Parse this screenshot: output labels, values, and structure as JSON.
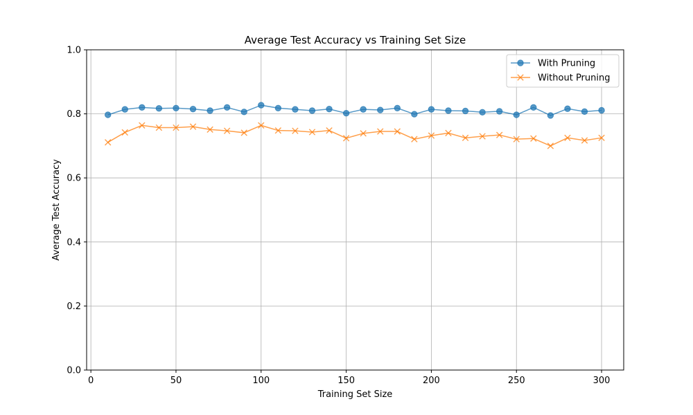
{
  "chart_data": {
    "type": "line",
    "title": "Average Test Accuracy vs Training Set Size",
    "xlabel": "Training Set Size",
    "ylabel": "Average Test Accuracy",
    "xlim": [
      -2.5,
      313
    ],
    "ylim": [
      0,
      1
    ],
    "xticks": [
      0,
      50,
      100,
      150,
      200,
      250,
      300
    ],
    "yticks": [
      0.0,
      0.2,
      0.4,
      0.6,
      0.8,
      1.0
    ],
    "ytick_labels": [
      "0.0",
      "0.2",
      "0.4",
      "0.6",
      "0.8",
      "1.0"
    ],
    "grid": true,
    "legend_position": "top-right",
    "x": [
      10,
      20,
      30,
      40,
      50,
      60,
      70,
      80,
      90,
      100,
      110,
      120,
      130,
      140,
      150,
      160,
      170,
      180,
      190,
      200,
      210,
      220,
      230,
      240,
      250,
      260,
      270,
      280,
      290,
      300
    ],
    "series": [
      {
        "name": "With Pruning",
        "color": "#1f77b4",
        "marker": "circle",
        "values": [
          0.797,
          0.814,
          0.82,
          0.817,
          0.818,
          0.815,
          0.81,
          0.82,
          0.806,
          0.827,
          0.818,
          0.814,
          0.81,
          0.815,
          0.802,
          0.814,
          0.812,
          0.818,
          0.799,
          0.814,
          0.81,
          0.809,
          0.805,
          0.808,
          0.797,
          0.82,
          0.795,
          0.816,
          0.807,
          0.811
        ]
      },
      {
        "name": "Without Pruning",
        "color": "#ff7f0e",
        "marker": "x",
        "values": [
          0.711,
          0.742,
          0.764,
          0.757,
          0.757,
          0.76,
          0.751,
          0.747,
          0.741,
          0.764,
          0.748,
          0.747,
          0.743,
          0.748,
          0.724,
          0.739,
          0.745,
          0.745,
          0.721,
          0.732,
          0.74,
          0.725,
          0.73,
          0.734,
          0.721,
          0.723,
          0.7,
          0.725,
          0.717,
          0.725
        ]
      }
    ]
  }
}
